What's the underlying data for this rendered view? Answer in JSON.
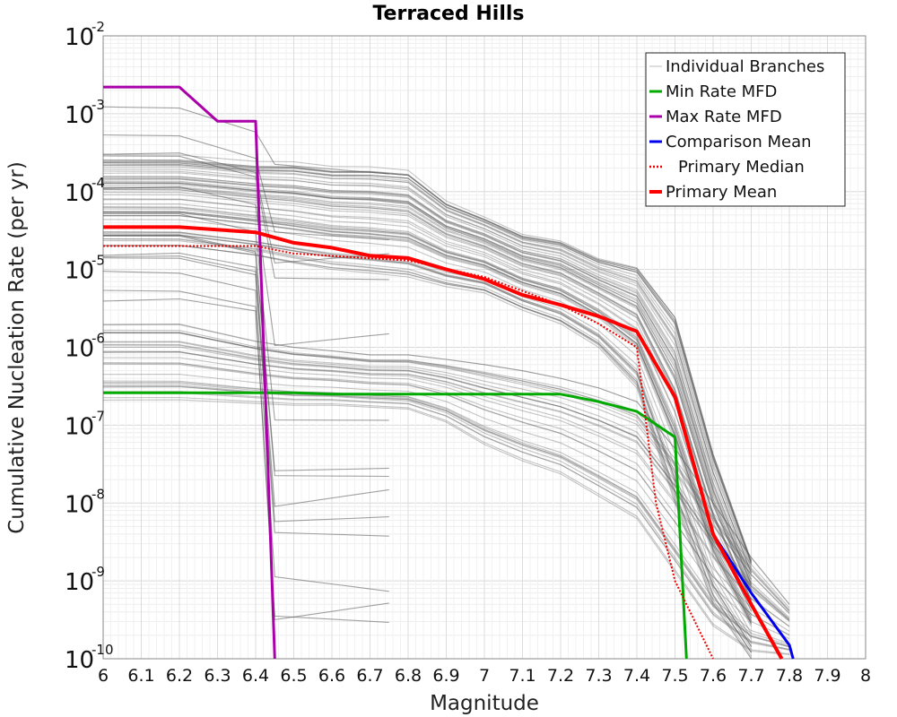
{
  "chart_data": {
    "type": "line",
    "title": "Terraced Hills",
    "xlabel": "Magnitude",
    "ylabel": "Cumulative Nucleation Rate (per yr)",
    "xlim": [
      6,
      8
    ],
    "ylim": [
      1e-10,
      0.01
    ],
    "yscale": "log",
    "grid": true,
    "legend_position": "top-right",
    "x_ticks": [
      "6",
      "6.1",
      "6.2",
      "6.3",
      "6.4",
      "6.5",
      "6.6",
      "6.7",
      "6.8",
      "6.9",
      "7",
      "7.1",
      "7.2",
      "7.3",
      "7.4",
      "7.5",
      "7.6",
      "7.7",
      "7.8",
      "7.9",
      "8"
    ],
    "y_ticks": [
      {
        "base": "10",
        "exp": "-10",
        "value": 1e-10
      },
      {
        "base": "10",
        "exp": "-9",
        "value": 1e-09
      },
      {
        "base": "10",
        "exp": "-8",
        "value": 1e-08
      },
      {
        "base": "10",
        "exp": "-7",
        "value": 1e-07
      },
      {
        "base": "10",
        "exp": "-6",
        "value": 1e-06
      },
      {
        "base": "10",
        "exp": "-5",
        "value": 1e-05
      },
      {
        "base": "10",
        "exp": "-4",
        "value": 0.0001
      },
      {
        "base": "10",
        "exp": "-3",
        "value": 0.001
      },
      {
        "base": "10",
        "exp": "-2",
        "value": 0.01
      }
    ],
    "series": [
      {
        "name": "Min Rate MFD",
        "color": "#00aa00",
        "style": "solid",
        "x": [
          6.0,
          6.5,
          6.6,
          7.0,
          7.2,
          7.3,
          7.4,
          7.5,
          7.53
        ],
        "y": [
          2.6e-07,
          2.6e-07,
          2.5e-07,
          2.5e-07,
          2.5e-07,
          2e-07,
          1.5e-07,
          7e-08,
          1e-10
        ]
      },
      {
        "name": "Max Rate MFD",
        "color": "#aa00aa",
        "style": "solid",
        "x": [
          6.0,
          6.2,
          6.3,
          6.4,
          6.45
        ],
        "y": [
          0.0022,
          0.0022,
          0.0008,
          0.0008,
          1e-10
        ]
      },
      {
        "name": "Comparison Mean",
        "color": "#0000ee",
        "style": "solid",
        "x": [
          7.6,
          7.7,
          7.8,
          7.81
        ],
        "y": [
          4e-09,
          7e-10,
          1.5e-10,
          1e-10
        ]
      },
      {
        "name": "Primary Median",
        "color": "#ee0000",
        "style": "dotted",
        "x": [
          6.0,
          6.4,
          6.5,
          6.8,
          7.0,
          7.2,
          7.3,
          7.4,
          7.45,
          7.5,
          7.6
        ],
        "y": [
          2e-05,
          2e-05,
          1.6e-05,
          1.3e-05,
          8e-06,
          3.5e-06,
          2e-06,
          1e-06,
          1e-08,
          1e-09,
          1e-10
        ]
      },
      {
        "name": "Primary Mean",
        "color": "#ff0000",
        "style": "solid",
        "x": [
          6.0,
          6.2,
          6.4,
          6.5,
          6.6,
          6.7,
          6.8,
          6.9,
          7.0,
          7.1,
          7.2,
          7.3,
          7.4,
          7.5,
          7.6,
          7.7,
          7.78
        ],
        "y": [
          3.5e-05,
          3.5e-05,
          3e-05,
          2.2e-05,
          1.9e-05,
          1.5e-05,
          1.4e-05,
          1e-05,
          7.5e-06,
          4.7e-06,
          3.5e-06,
          2.5e-06,
          1.6e-06,
          2.3e-07,
          4e-09,
          5e-10,
          1e-10
        ]
      }
    ],
    "legend": [
      {
        "label": "Individual Branches",
        "color": "#bbbbbb",
        "style": "thin"
      },
      {
        "label": "Min Rate MFD",
        "color": "#00aa00",
        "style": "solid"
      },
      {
        "label": "Max Rate MFD",
        "color": "#aa00aa",
        "style": "solid"
      },
      {
        "label": "Comparison Mean",
        "color": "#0000ee",
        "style": "solid"
      },
      {
        "label": "Primary Median",
        "color": "#ee0000",
        "style": "dotted"
      },
      {
        "label": "Primary Mean",
        "color": "#ff0000",
        "style": "thick"
      }
    ],
    "branches": {
      "name": "Individual Branches",
      "color": "#555555",
      "groups": [
        {
          "count": 60,
          "x": [
            6.0,
            6.2,
            6.4,
            6.5,
            6.6,
            6.7,
            6.8,
            6.9,
            7.0,
            7.1,
            7.2,
            7.3,
            7.4,
            7.5,
            7.6,
            7.7
          ],
          "ylo": [
            2e-05,
            2e-05,
            1.5e-05,
            1.2e-05,
            1e-05,
            9e-06,
            8e-06,
            6e-06,
            5e-06,
            3e-06,
            2e-06,
            1e-06,
            3e-07,
            1e-08,
            5e-10,
            1e-10
          ],
          "yhi": [
            0.0003,
            0.0003,
            0.00025,
            0.00025,
            0.00022,
            0.00022,
            0.0002,
            8e-05,
            5e-05,
            3e-05,
            2.5e-05,
            1.5e-05,
            1.2e-05,
            3e-06,
            5e-08,
            2e-09
          ]
        },
        {
          "count": 30,
          "x": [
            6.0,
            6.2,
            6.4,
            6.5,
            6.6,
            6.7,
            6.8,
            6.9,
            7.0,
            7.1,
            7.2,
            7.3,
            7.4,
            7.5,
            7.6,
            7.7,
            7.8
          ],
          "ylo": [
            2e-07,
            2e-07,
            1.8e-07,
            1.7e-07,
            1.7e-07,
            1.6e-07,
            1.5e-07,
            1e-07,
            5e-08,
            3e-08,
            2e-08,
            1e-08,
            5e-09,
            1e-09,
            2e-10,
            1e-10,
            1e-10
          ],
          "yhi": [
            2e-06,
            2e-06,
            1.2e-06,
            1e-06,
            9e-07,
            8e-07,
            8e-07,
            7e-07,
            6e-07,
            5e-07,
            4e-07,
            3e-07,
            2e-07,
            5e-08,
            1e-08,
            2e-09,
            5e-10
          ]
        },
        {
          "count": 14,
          "x": [
            6.0,
            6.2,
            6.4,
            6.45,
            6.55,
            6.65,
            6.75
          ],
          "ylo": [
            0.002,
            0.002,
            0.001,
            0.001,
            0.001,
            0.001,
            0.001
          ],
          "yhi": [
            3e-06,
            3e-06,
            2e-06,
            1e-10,
            1e-10,
            1e-10,
            1e-10
          ]
        }
      ]
    }
  }
}
